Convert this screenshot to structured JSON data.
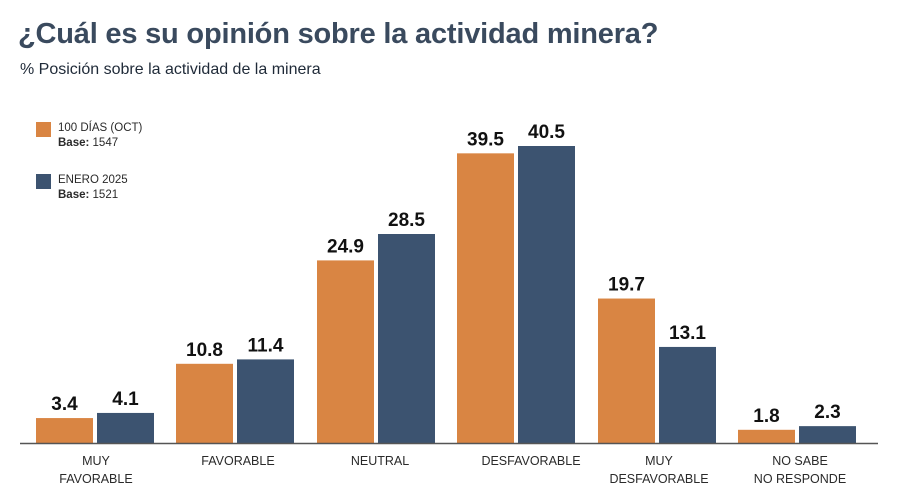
{
  "chart_data": {
    "type": "bar",
    "title": "¿Cuál es su opinión sobre la actividad minera?",
    "subtitle": "% Posición sobre la actividad de la minera",
    "categories": [
      [
        "MUY",
        "FAVORABLE"
      ],
      [
        "FAVORABLE"
      ],
      [
        "NEUTRAL"
      ],
      [
        "DESFAVORABLE"
      ],
      [
        "MUY",
        "DESFAVORABLE"
      ],
      [
        "NO SABE",
        "NO RESPONDE"
      ]
    ],
    "series": [
      {
        "name": "100 DÍAS (OCT)",
        "base_label": "Base:",
        "base_value": "1547",
        "color": "#d98543",
        "values": [
          3.4,
          10.8,
          24.9,
          39.5,
          19.7,
          1.8
        ]
      },
      {
        "name": "ENERO 2025",
        "base_label": "Base:",
        "base_value": "1521",
        "color": "#3c5370",
        "values": [
          4.1,
          11.4,
          28.5,
          40.5,
          13.1,
          2.3
        ]
      }
    ],
    "ylim": [
      0,
      40.5
    ],
    "xlabel": "",
    "ylabel": "",
    "grid": false,
    "legend": "top-left"
  }
}
